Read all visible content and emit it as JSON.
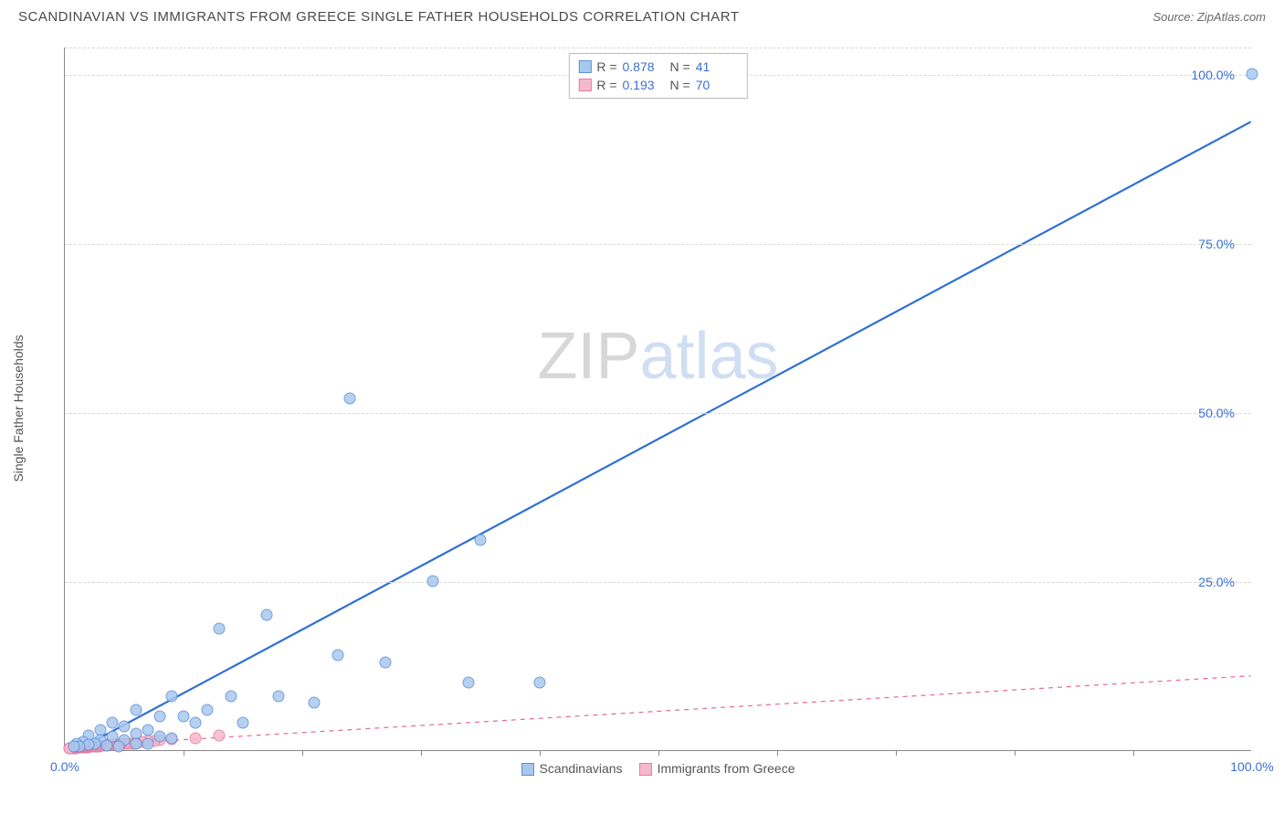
{
  "header": {
    "title": "SCANDINAVIAN VS IMMIGRANTS FROM GREECE SINGLE FATHER HOUSEHOLDS CORRELATION CHART",
    "source": "Source: ZipAtlas.com"
  },
  "watermark": {
    "part1": "ZIP",
    "part2": "atlas"
  },
  "chart": {
    "type": "scatter",
    "ylabel": "Single Father Households",
    "xlim": [
      0,
      100
    ],
    "ylim": [
      0,
      104
    ],
    "xtick_labels": [
      {
        "v": 0,
        "label": "0.0%"
      },
      {
        "v": 100,
        "label": "100.0%"
      }
    ],
    "xtick_marks": [
      10,
      20,
      30,
      40,
      50,
      60,
      70,
      80,
      90
    ],
    "ytick_labels": [
      {
        "v": 25,
        "label": "25.0%"
      },
      {
        "v": 50,
        "label": "50.0%"
      },
      {
        "v": 75,
        "label": "75.0%"
      },
      {
        "v": 100,
        "label": "100.0%"
      }
    ],
    "grid_y_dashed": [
      25,
      50,
      75,
      100,
      104
    ],
    "background_color": "#ffffff",
    "grid_color": "#d8d8d8",
    "series": [
      {
        "name": "Scandinavians",
        "marker_fill": "#a9c8ef",
        "marker_stroke": "#5e90d6",
        "marker_radius": 6.5,
        "trend": {
          "x1": 1,
          "y1": 0,
          "x2": 100,
          "y2": 93,
          "color": "#2f6fd6",
          "width": 2.2,
          "dash": "none"
        },
        "R": "0.878",
        "N": "41",
        "points": [
          [
            100,
            100
          ],
          [
            24,
            52
          ],
          [
            35,
            31
          ],
          [
            31,
            25
          ],
          [
            17,
            20
          ],
          [
            13,
            18
          ],
          [
            23,
            14
          ],
          [
            27,
            13
          ],
          [
            34,
            10
          ],
          [
            40,
            10
          ],
          [
            9,
            8
          ],
          [
            14,
            8
          ],
          [
            18,
            8
          ],
          [
            21,
            7
          ],
          [
            12,
            6
          ],
          [
            6,
            6
          ],
          [
            8,
            5
          ],
          [
            10,
            5
          ],
          [
            11,
            4
          ],
          [
            15,
            4
          ],
          [
            4,
            4
          ],
          [
            5,
            3.5
          ],
          [
            7,
            3
          ],
          [
            3,
            3
          ],
          [
            6,
            2.5
          ],
          [
            2,
            2.2
          ],
          [
            4,
            2
          ],
          [
            8,
            2
          ],
          [
            9,
            1.8
          ],
          [
            3,
            1.5
          ],
          [
            5,
            1.5
          ],
          [
            1.5,
            1.2
          ],
          [
            2.5,
            1
          ],
          [
            6,
            1
          ],
          [
            7,
            1
          ],
          [
            1,
            0.9
          ],
          [
            2,
            0.8
          ],
          [
            3.5,
            0.7
          ],
          [
            1.2,
            0.6
          ],
          [
            0.8,
            0.5
          ],
          [
            4.5,
            0.5
          ]
        ]
      },
      {
        "name": "Immigrants from Greece",
        "marker_fill": "#f6b9cb",
        "marker_stroke": "#e87ba1",
        "marker_radius": 6.5,
        "trend": {
          "x1": 0,
          "y1": 0.5,
          "x2": 100,
          "y2": 11,
          "color": "#e36a8f",
          "width": 1.2,
          "dash": "5,5"
        },
        "R": "0.193",
        "N": "70",
        "points": [
          [
            13,
            2.1
          ],
          [
            11,
            1.8
          ],
          [
            9,
            1.6
          ],
          [
            8,
            1.5
          ],
          [
            7.5,
            1.4
          ],
          [
            7,
            1.3
          ],
          [
            6.5,
            1.2
          ],
          [
            6,
            1.1
          ],
          [
            5.8,
            1.0
          ],
          [
            5.5,
            1.0
          ],
          [
            5.2,
            0.9
          ],
          [
            5,
            0.9
          ],
          [
            4.8,
            0.9
          ],
          [
            4.6,
            0.8
          ],
          [
            4.4,
            0.8
          ],
          [
            4.2,
            0.8
          ],
          [
            4,
            0.8
          ],
          [
            3.8,
            0.75
          ],
          [
            3.6,
            0.75
          ],
          [
            3.5,
            0.7
          ],
          [
            3.4,
            0.7
          ],
          [
            3.2,
            0.7
          ],
          [
            3.1,
            0.65
          ],
          [
            3,
            0.65
          ],
          [
            2.9,
            0.6
          ],
          [
            2.8,
            0.6
          ],
          [
            2.7,
            0.6
          ],
          [
            2.6,
            0.6
          ],
          [
            2.5,
            0.55
          ],
          [
            2.4,
            0.55
          ],
          [
            2.35,
            0.55
          ],
          [
            2.3,
            0.5
          ],
          [
            2.25,
            0.5
          ],
          [
            2.2,
            0.5
          ],
          [
            2.1,
            0.5
          ],
          [
            2.05,
            0.5
          ],
          [
            2,
            0.48
          ],
          [
            1.95,
            0.47
          ],
          [
            1.9,
            0.47
          ],
          [
            1.85,
            0.46
          ],
          [
            1.8,
            0.45
          ],
          [
            1.75,
            0.45
          ],
          [
            1.7,
            0.44
          ],
          [
            1.65,
            0.43
          ],
          [
            1.6,
            0.42
          ],
          [
            1.55,
            0.42
          ],
          [
            1.5,
            0.41
          ],
          [
            1.45,
            0.4
          ],
          [
            1.4,
            0.4
          ],
          [
            1.35,
            0.39
          ],
          [
            1.3,
            0.38
          ],
          [
            1.25,
            0.37
          ],
          [
            1.2,
            0.36
          ],
          [
            1.15,
            0.36
          ],
          [
            1.1,
            0.35
          ],
          [
            1.05,
            0.35
          ],
          [
            1.0,
            0.34
          ],
          [
            0.95,
            0.33
          ],
          [
            0.9,
            0.32
          ],
          [
            0.85,
            0.32
          ],
          [
            0.8,
            0.31
          ],
          [
            0.75,
            0.3
          ],
          [
            0.7,
            0.3
          ],
          [
            0.65,
            0.29
          ],
          [
            0.6,
            0.28
          ],
          [
            0.55,
            0.28
          ],
          [
            0.5,
            0.27
          ],
          [
            0.45,
            0.27
          ],
          [
            0.4,
            0.26
          ],
          [
            0.35,
            0.26
          ]
        ]
      }
    ],
    "legend_top_labels": {
      "R": "R =",
      "N": "N ="
    },
    "legend_bottom": [
      {
        "swatch_fill": "#a9c8ef",
        "swatch_stroke": "#5e90d6",
        "label": "Scandinavians"
      },
      {
        "swatch_fill": "#f6b9cb",
        "swatch_stroke": "#e87ba1",
        "label": "Immigrants from Greece"
      }
    ]
  }
}
